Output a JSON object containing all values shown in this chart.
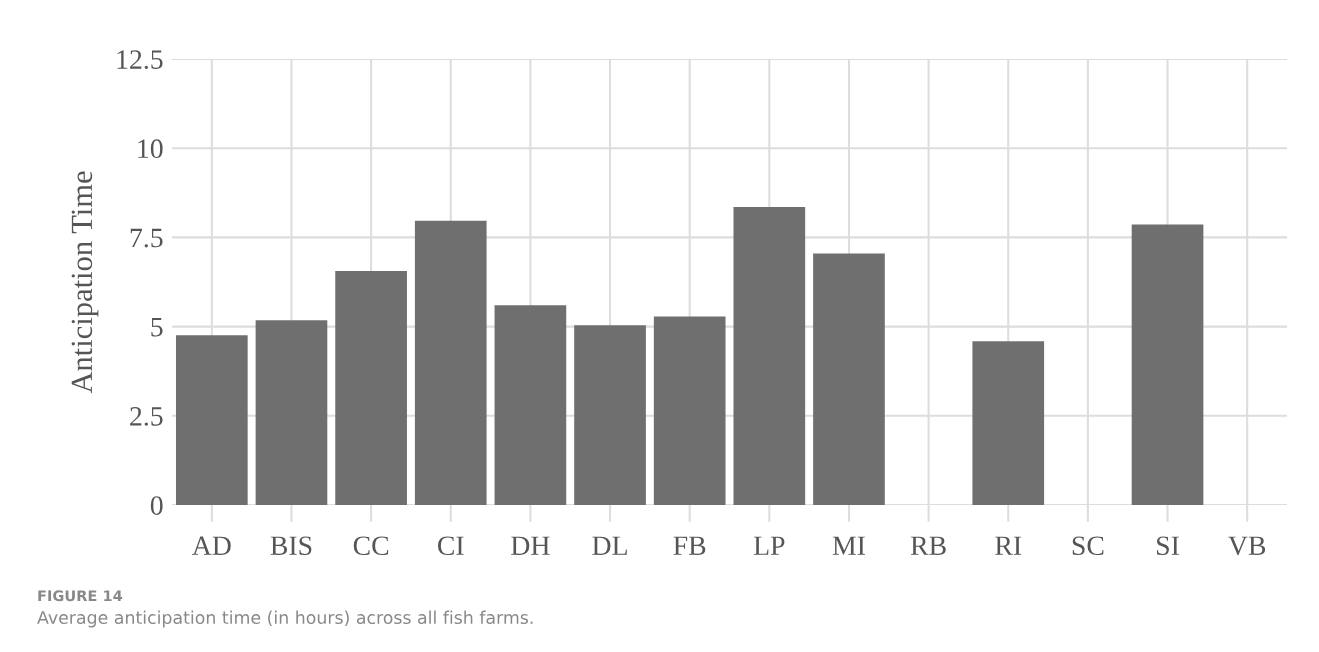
{
  "chart_data": {
    "type": "bar",
    "ylabel": "Anticipation Time",
    "categories": [
      "AD",
      "BIS",
      "CC",
      "CI",
      "DH",
      "DL",
      "FB",
      "LP",
      "MI",
      "RB",
      "RI",
      "SC",
      "SI",
      "VB"
    ],
    "values": [
      4.76,
      5.18,
      6.56,
      7.97,
      5.6,
      5.04,
      5.28,
      8.35,
      7.05,
      null,
      4.59,
      null,
      7.86,
      null
    ],
    "color": "#6f6f6f",
    "ylim": [
      0,
      12.5
    ],
    "yticks": [
      0,
      2.5,
      5,
      {
        "value": 7.5,
        "label": "7.5"
      },
      10,
      12.5
    ],
    "grid": true,
    "annotations": [
      "FIGURE 14",
      "Average anticipation time (in hours) across all fish farms."
    ]
  }
}
